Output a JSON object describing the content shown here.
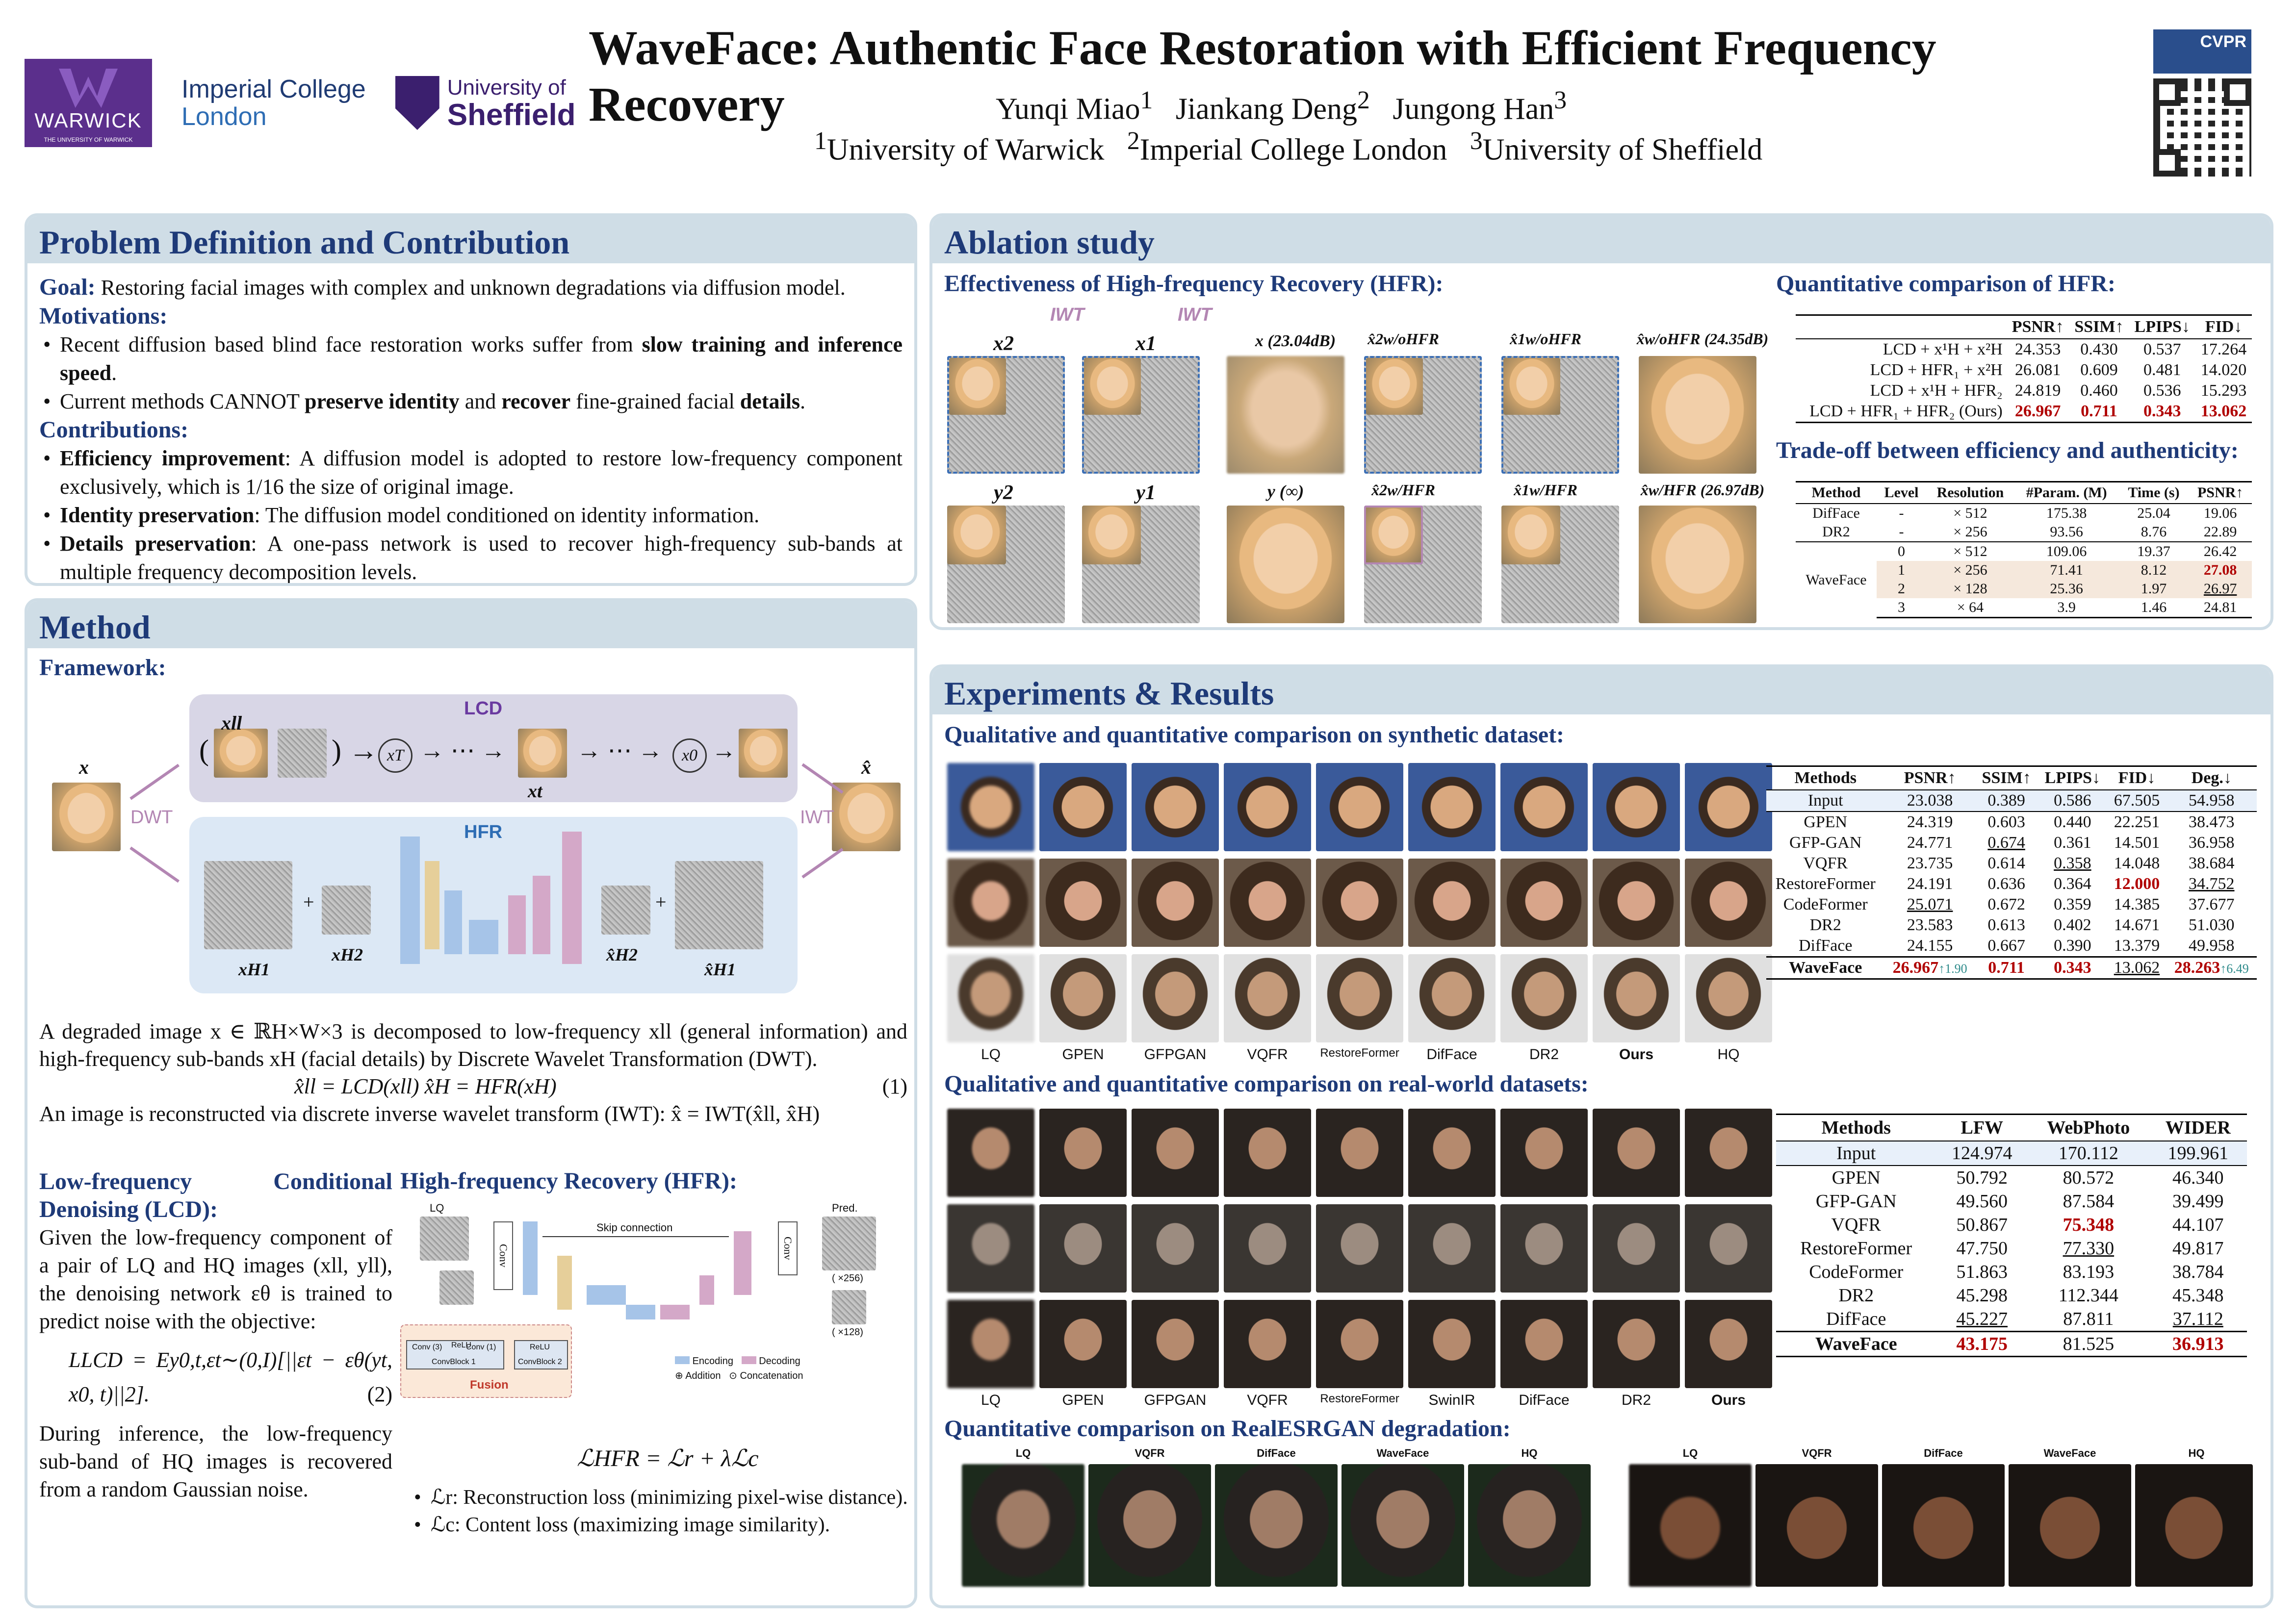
{
  "header": {
    "title": "WaveFace: Authentic Face Restoration with Efficient Frequency Recovery",
    "authors": [
      "Yunqi Miao",
      "Jiankang Deng",
      "Jungong Han"
    ],
    "author_sups": [
      "1",
      "2",
      "3"
    ],
    "affiliations": [
      "University of Warwick",
      "Imperial College London",
      "University of Sheffield"
    ],
    "logos": {
      "warwick": "WARWICK",
      "warwick_sub": "THE UNIVERSITY OF WARWICK",
      "imperial_line1": "Imperial College",
      "imperial_line2": "London",
      "sheffield_line1": "University of",
      "sheffield_line2": "Sheffield"
    },
    "conference": "CVPR"
  },
  "problem": {
    "heading": "Problem Definition and Contribution",
    "goal_label": "Goal:",
    "goal_text": " Restoring facial images with complex and unknown degradations via diffusion model.",
    "motivations_label": "Motivations:",
    "motivations": [
      [
        "Recent diffusion based blind face restoration works suffer from ",
        "slow training and inference speed",
        "."
      ],
      [
        "Current methods CANNOT ",
        "preserve identity",
        " and ",
        "recover",
        " fine-grained facial ",
        "details",
        "."
      ]
    ],
    "contributions_label": "Contributions:",
    "contributions": [
      [
        "Efficiency improvement",
        ": A diffusion model is adopted to restore low-frequency component exclusively, which is 1/16 the size of original image."
      ],
      [
        "Identity preservation",
        ": The diffusion model conditioned on identity information."
      ],
      [
        "Details preservation",
        ": A one-pass network is used to recover high-frequency sub-bands at multiple frequency decomposition levels."
      ]
    ]
  },
  "method": {
    "heading": "Method",
    "framework_label": "Framework:",
    "lcd_label": "LCD",
    "hfr_label": "HFR",
    "dwt_label": "DWT",
    "iwt_label": "IWT",
    "x_label": "x",
    "xhat_label": "x̂",
    "xll_label": "xll",
    "xT_label": "xT",
    "x0_label": "x0",
    "xt_label": "xt",
    "xH1_label": "xH1",
    "xH2_label": "xH2",
    "xhatH2_label": "x̂H2",
    "xhatH1_label": "x̂H1",
    "desc1": "A degraded image x ∈ ℝH×W×3 is decomposed to low-frequency xll (general information) and high-frequency sub-bands xH (facial details) by Discrete Wavelet Transformation (DWT).",
    "eq1": "x̂ll = LCD(xll)   x̂H = HFR(xH)",
    "eq1_num": "(1)",
    "desc2": "An image is reconstructed via discrete inverse wavelet transform (IWT): x̂ = IWT(x̂ll, x̂H)",
    "lcd_heading": "Low-frequency Conditional Denoising (LCD):",
    "lcd_text": "Given the low-frequency component of a pair of LQ and HQ images (xll, yll), the denoising network εθ is trained to predict noise with the objective:",
    "eq2": "LLCD = Ey0,t,εt∼(0,I)[||εt − εθ(yt, x0, t)||2].",
    "eq2_num": "(2)",
    "lcd_text2": "During inference, the low-frequency sub-band of HQ images is recovered from a random Gaussian noise.",
    "hfr_heading": "High-frequency Recovery (HFR):",
    "hfr_diagram": {
      "lq": "LQ",
      "pred": "Pred.",
      "skip": "Skip connection",
      "conv": "Conv",
      "fusion": "Fusion",
      "convblock1": "ConvBlock 1",
      "convblock2": "ConvBlock 2",
      "relu": "ReLU",
      "conv3": "Conv (3)",
      "conv1": "Conv (1)",
      "encoding": "Encoding",
      "decoding": "Decoding",
      "addition": "Addition",
      "concatenation": "Concatenation",
      "x256": "( ×256)",
      "x128": "( ×128)"
    },
    "eq3": "ℒHFR = ℒr + λℒc",
    "losses": [
      "ℒr: Reconstruction loss (minimizing pixel-wise distance).",
      "ℒc: Content loss (maximizing image similarity)."
    ]
  },
  "ablation": {
    "heading": "Ablation study",
    "hfr_effect_label": "Effectiveness of High-frequency Recovery (HFR):",
    "iwt": "IWT",
    "top_labels": [
      "x2",
      "x1",
      "x (23.04dB)",
      "x̂2w/oHFR",
      "x̂1w/oHFR",
      "x̂w/oHFR (24.35dB)"
    ],
    "bottom_labels": [
      "y2",
      "y1",
      "y (∞)",
      "x̂2w/HFR",
      "x̂1w/HFR",
      "x̂w/HFR (26.97dB)"
    ],
    "quant_hfr_label": "Quantitative comparison of HFR:",
    "hfr_table": {
      "headers": [
        "",
        "PSNR↑",
        "SSIM↑",
        "LPIPS↓",
        "FID↓"
      ],
      "rows": [
        [
          "LCD + x¹H + x²H",
          "24.353",
          "0.430",
          "0.537",
          "17.264"
        ],
        [
          "LCD + HFR₁ + x²H",
          "26.081",
          "0.609",
          "0.481",
          "14.020"
        ],
        [
          "LCD + x¹H + HFR₂",
          "24.819",
          "0.460",
          "0.536",
          "15.293"
        ],
        [
          "LCD + HFR₁ + HFR₂ (Ours)",
          "26.967",
          "0.711",
          "0.343",
          "13.062"
        ]
      ]
    },
    "tradeoff_label": "Trade-off between efficiency and authenticity:",
    "tradeoff_table": {
      "headers": [
        "Method",
        "Level",
        "Resolution",
        "#Param. (M)",
        "Time (s)",
        "PSNR↑"
      ],
      "rows": [
        [
          "DifFace",
          "-",
          "× 512",
          "175.38",
          "25.04",
          "19.06"
        ],
        [
          "DR2",
          "-",
          "× 256",
          "93.56",
          "8.76",
          "22.89"
        ],
        [
          "WaveFace",
          "0",
          "× 512",
          "109.06",
          "19.37",
          "26.42"
        ],
        [
          "",
          "1",
          "× 256",
          "71.41",
          "8.12",
          "27.08"
        ],
        [
          "",
          "2",
          "× 128",
          "25.36",
          "1.97",
          "26.97"
        ],
        [
          "",
          "3",
          "× 64",
          "3.9",
          "1.46",
          "24.81"
        ]
      ]
    }
  },
  "experiments": {
    "heading": "Experiments & Results",
    "synthetic_label": "Qualitative and quantitative comparison on synthetic dataset:",
    "synthetic_cols": [
      "LQ",
      "GPEN",
      "GFPGAN",
      "VQFR",
      "RestoreFormer",
      "DifFace",
      "DR2",
      "Ours",
      "HQ"
    ],
    "synthetic_table": {
      "headers": [
        "Methods",
        "PSNR↑",
        "SSIM↑",
        "LPIPS↓",
        "FID↓",
        "Deg.↓"
      ],
      "input": [
        "Input",
        "23.038",
        "0.389",
        "0.586",
        "67.505",
        "54.958"
      ],
      "rows": [
        [
          "GPEN",
          "24.319",
          "0.603",
          "0.440",
          "22.251",
          "38.473"
        ],
        [
          "GFP-GAN",
          "24.771",
          "0.674",
          "0.361",
          "14.501",
          "36.958"
        ],
        [
          "VQFR",
          "23.735",
          "0.614",
          "0.358",
          "14.048",
          "38.684"
        ],
        [
          "RestoreFormer",
          "24.191",
          "0.636",
          "0.364",
          "12.000",
          "34.752"
        ],
        [
          "CodeFormer",
          "25.071",
          "0.672",
          "0.359",
          "14.385",
          "37.677"
        ],
        [
          "DR2",
          "23.583",
          "0.613",
          "0.402",
          "14.671",
          "51.030"
        ],
        [
          "DifFace",
          "24.155",
          "0.667",
          "0.390",
          "13.379",
          "49.958"
        ]
      ],
      "ours": [
        "WaveFace",
        "26.967",
        "0.711",
        "0.343",
        "13.062",
        "28.263"
      ],
      "ours_gain_psnr": "↑1.90",
      "ours_gain_deg": "↑6.49"
    },
    "realworld_label": "Qualitative and quantitative comparison on real-world datasets:",
    "realworld_cols": [
      "LQ",
      "GPEN",
      "GFPGAN",
      "VQFR",
      "RestoreFormer",
      "SwinIR",
      "DifFace",
      "DR2",
      "Ours"
    ],
    "realworld_table": {
      "headers": [
        "Methods",
        "LFW",
        "WebPhoto",
        "WIDER"
      ],
      "input": [
        "Input",
        "124.974",
        "170.112",
        "199.961"
      ],
      "rows": [
        [
          "GPEN",
          "50.792",
          "80.572",
          "46.340"
        ],
        [
          "GFP-GAN",
          "49.560",
          "87.584",
          "39.499"
        ],
        [
          "VQFR",
          "50.867",
          "75.348",
          "44.107"
        ],
        [
          "RestoreFormer",
          "47.750",
          "77.330",
          "49.817"
        ],
        [
          "CodeFormer",
          "51.863",
          "83.193",
          "38.784"
        ],
        [
          "DR2",
          "45.298",
          "112.344",
          "45.348"
        ],
        [
          "DifFace",
          "45.227",
          "87.811",
          "37.112"
        ]
      ],
      "ours": [
        "WaveFace",
        "43.175",
        "81.525",
        "36.913"
      ]
    },
    "realesrgan_label": "Quantitative comparison on RealESRGAN degradation:",
    "realesrgan_cols": [
      "LQ",
      "VQFR",
      "DifFace",
      "WaveFace",
      "HQ"
    ]
  }
}
